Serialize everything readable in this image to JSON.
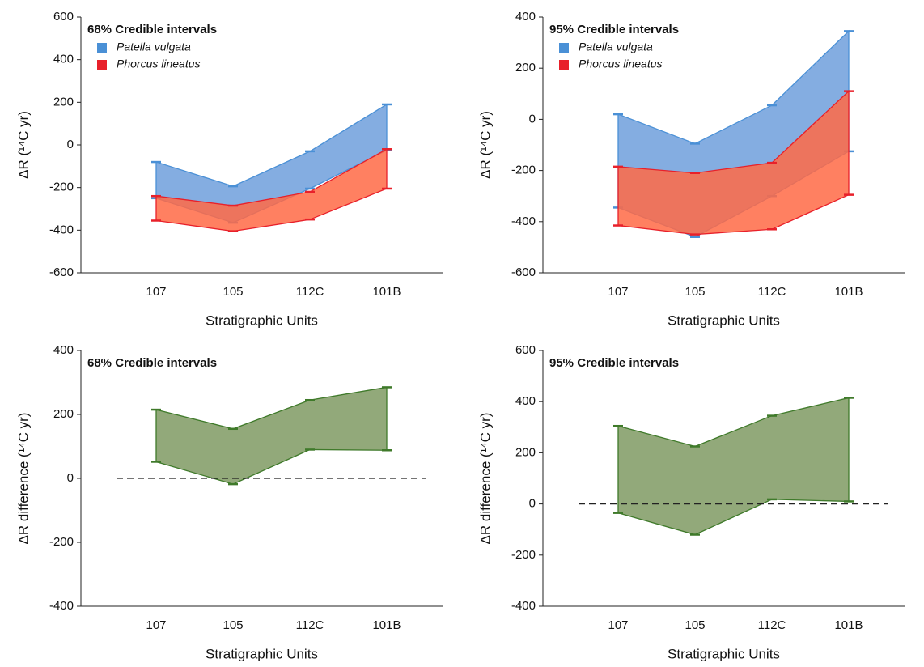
{
  "chart_data": [
    {
      "type": "range",
      "title": "68% Credible intervals",
      "xlabel": "Stratigraphic Units",
      "ylabel": "ΔR (¹⁴C yr)",
      "categories": [
        "107",
        "105",
        "112C",
        "101B"
      ],
      "ylim": [
        -600,
        600
      ],
      "yticks": [
        -600,
        -400,
        -200,
        0,
        200,
        400,
        600
      ],
      "series": [
        {
          "name": "Patella vulgata",
          "color": "#4a90d6",
          "fill": "#6f9fdc",
          "upper": [
            -80,
            -194,
            -30,
            190
          ],
          "lower": [
            -250,
            -365,
            -205,
            -25
          ]
        },
        {
          "name": "Phorcus lineatus",
          "color": "#e8202a",
          "fill": "#ff6a45",
          "upper": [
            -240,
            -285,
            -220,
            -20
          ],
          "lower": [
            -355,
            -405,
            -350,
            -205
          ]
        }
      ]
    },
    {
      "type": "range",
      "title": "95% Credible intervals",
      "xlabel": "Stratigraphic Units",
      "ylabel": "ΔR (¹⁴C yr)",
      "categories": [
        "107",
        "105",
        "112C",
        "101B"
      ],
      "ylim": [
        -600,
        400
      ],
      "yticks": [
        -600,
        -400,
        -200,
        0,
        200,
        400
      ],
      "series": [
        {
          "name": "Patella vulgata",
          "color": "#4a90d6",
          "fill": "#6f9fdc",
          "upper": [
            20,
            -95,
            55,
            345
          ],
          "lower": [
            -345,
            -460,
            -300,
            -125
          ]
        },
        {
          "name": "Phorcus lineatus",
          "color": "#e8202a",
          "fill": "#ff6a45",
          "upper": [
            -185,
            -210,
            -170,
            110
          ],
          "lower": [
            -415,
            -450,
            -430,
            -295
          ]
        }
      ]
    },
    {
      "type": "range",
      "title": "68% Credible intervals",
      "xlabel": "Stratigraphic Units",
      "ylabel": "ΔR difference (¹⁴C yr)",
      "categories": [
        "107",
        "105",
        "112C",
        "101B"
      ],
      "ylim": [
        -400,
        400
      ],
      "yticks": [
        -400,
        -200,
        0,
        200,
        400
      ],
      "hline": 0,
      "series": [
        {
          "color": "#3f7a2a",
          "fill": "#7f9a63",
          "upper": [
            215,
            155,
            245,
            285
          ],
          "lower": [
            52,
            -18,
            90,
            88
          ]
        }
      ]
    },
    {
      "type": "range",
      "title": "95% Credible intervals",
      "xlabel": "Stratigraphic Units",
      "ylabel": "ΔR difference (¹⁴C yr)",
      "categories": [
        "107",
        "105",
        "112C",
        "101B"
      ],
      "ylim": [
        -400,
        600
      ],
      "yticks": [
        -400,
        -200,
        0,
        200,
        400,
        600
      ],
      "hline": 0,
      "series": [
        {
          "color": "#3f7a2a",
          "fill": "#7f9a63",
          "upper": [
            305,
            225,
            345,
            415
          ],
          "lower": [
            -35,
            -120,
            18,
            10
          ]
        }
      ]
    }
  ]
}
